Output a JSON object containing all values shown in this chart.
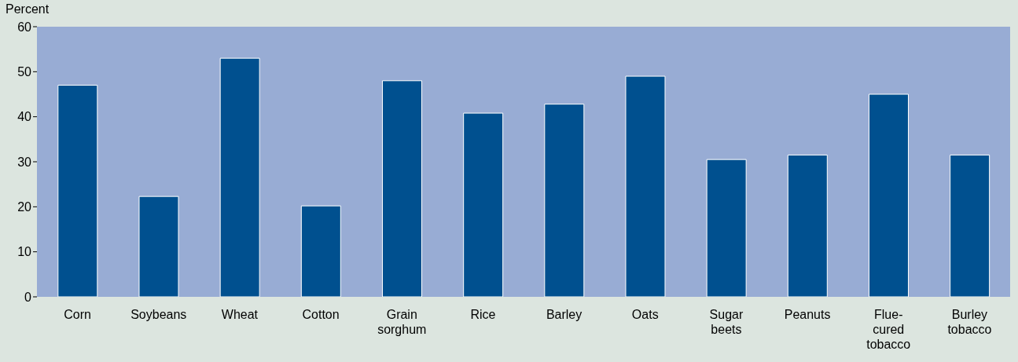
{
  "chart_data": {
    "type": "bar",
    "ylabel": "Percent",
    "categories": [
      "Corn",
      "Soybeans",
      "Wheat",
      "Cotton",
      "Grain sorghum",
      "Rice",
      "Barley",
      "Oats",
      "Sugar beets",
      "Peanuts",
      "Flue-cured tobacco",
      "Burley tobacco"
    ],
    "values": [
      47,
      22.3,
      53,
      20.2,
      48,
      40.8,
      42.8,
      49,
      30.5,
      31.5,
      45,
      31.5
    ],
    "color": "#00508f",
    "ylim": [
      0,
      60
    ],
    "yticks": [
      0,
      10,
      20,
      30,
      40,
      50,
      60
    ],
    "grid": false,
    "legend": false
  }
}
